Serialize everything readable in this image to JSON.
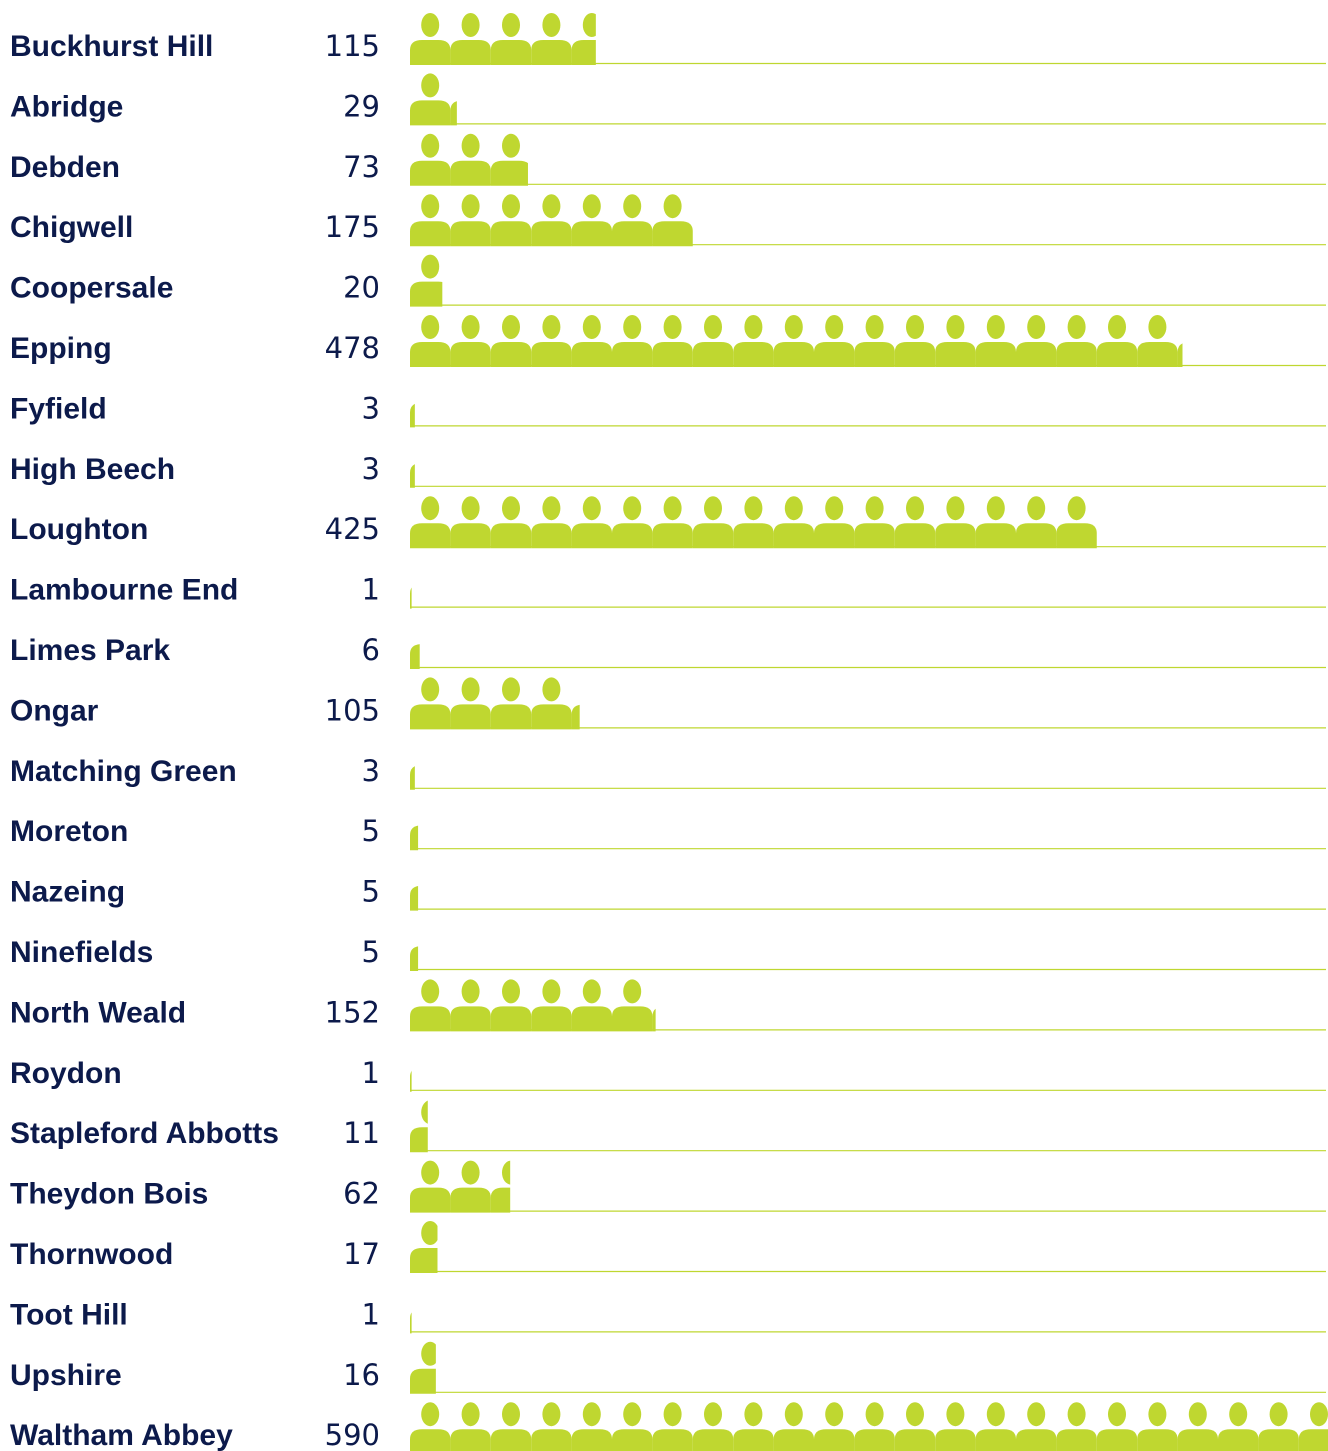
{
  "chart_data": {
    "type": "bar",
    "categories": [
      "Buckhurst Hill",
      "Abridge",
      "Debden",
      "Chigwell",
      "Coopersale",
      "Epping",
      "Fyfield",
      "High Beech",
      "Loughton",
      "Lambourne End",
      "Limes Park",
      "Ongar",
      "Matching Green",
      "Moreton",
      "Nazeing",
      "Ninefields",
      "North Weald",
      "Roydon",
      "Stapleford Abbotts",
      "Theydon Bois",
      "Thornwood",
      "Toot Hill",
      "Upshire",
      "Waltham Abbey"
    ],
    "values": [
      115,
      29,
      73,
      175,
      20,
      478,
      3,
      3,
      425,
      1,
      6,
      105,
      3,
      5,
      5,
      5,
      152,
      1,
      11,
      62,
      17,
      1,
      16,
      590
    ],
    "value_labels": [
      "115",
      "29",
      "73",
      "175",
      "20",
      "478",
      "3",
      "3",
      "425",
      "1",
      "6",
      "105",
      "3",
      "5",
      "5",
      "5",
      "152",
      "1",
      "11",
      "62",
      "17",
      "1",
      "16",
      "590"
    ],
    "title": "",
    "xlabel": "",
    "ylabel": "",
    "grid": false,
    "legend": "none"
  },
  "colors": {
    "bar": "#bfd730",
    "text": "#0c1a4b",
    "separator": "#bfd730"
  },
  "icon": "person-icon"
}
